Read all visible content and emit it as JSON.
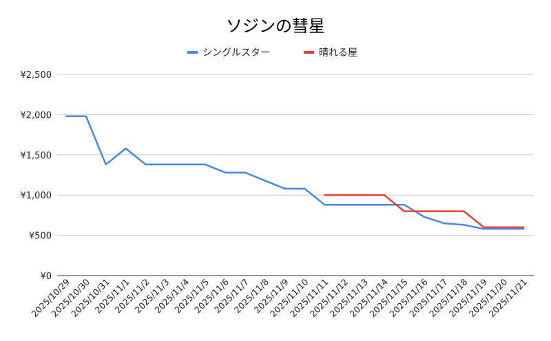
{
  "chart_data": {
    "type": "line",
    "title": "ソジンの彗星",
    "legend_position": "top",
    "grid": true,
    "ylim": [
      0,
      2500
    ],
    "y_ticks": [
      0,
      500,
      1000,
      1500,
      2000,
      2500
    ],
    "y_tick_labels": [
      "¥0",
      "¥500",
      "¥1,000",
      "¥1,500",
      "¥2,000",
      "¥2,500"
    ],
    "categories": [
      "2025/10/29",
      "2025/10/30",
      "2025/10/31",
      "2025/11/1",
      "2025/11/2",
      "2025/11/3",
      "2025/11/4",
      "2025/11/5",
      "2025/11/6",
      "2025/11/7",
      "2025/11/8",
      "2025/11/9",
      "2025/11/10",
      "2025/11/11",
      "2025/11/12",
      "2025/11/13",
      "2025/11/14",
      "2025/11/15",
      "2025/11/16",
      "2025/11/17",
      "2025/11/18",
      "2025/11/19",
      "2025/11/20",
      "2025/11/21"
    ],
    "series": [
      {
        "name": "シングルスター",
        "color": "#4a86e8",
        "values": [
          1980,
          1980,
          1380,
          1580,
          1380,
          1380,
          1380,
          1380,
          1280,
          1280,
          1180,
          1080,
          1080,
          880,
          880,
          880,
          880,
          880,
          730,
          650,
          630,
          580,
          580,
          580
        ]
      },
      {
        "name": "晴れる屋",
        "color": "#ea4335",
        "values": [
          null,
          null,
          null,
          null,
          null,
          null,
          null,
          null,
          null,
          null,
          null,
          null,
          null,
          1000,
          1000,
          1000,
          1000,
          800,
          800,
          800,
          800,
          600,
          600,
          600
        ]
      }
    ]
  }
}
